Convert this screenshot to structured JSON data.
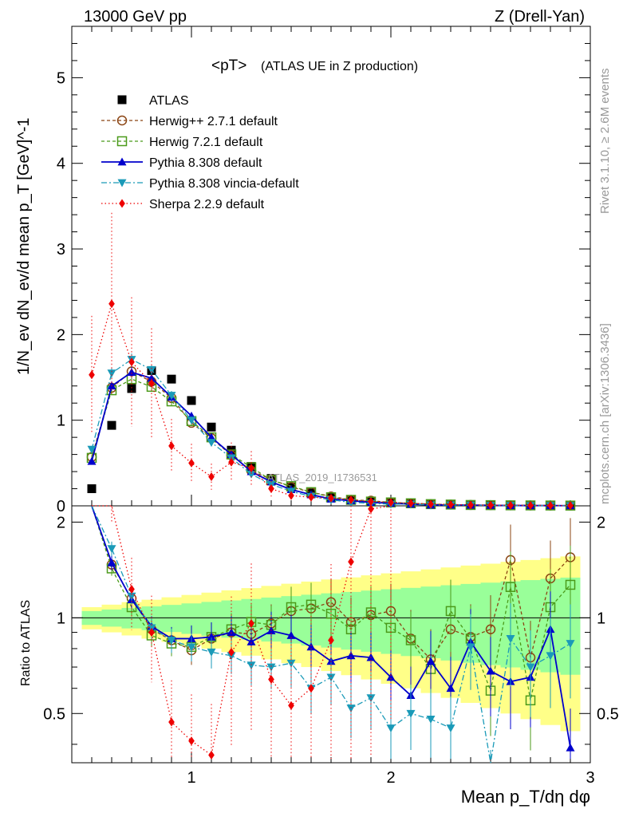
{
  "header": {
    "left": "13000 GeV pp",
    "right": "Z (Drell-Yan)"
  },
  "side_labels": {
    "rivet": "Rivet 3.1.10, ≥ 2.6M events",
    "mcplots": "mcplots.cern.ch [arXiv:1306.3436]"
  },
  "chart_data": {
    "type": "scatter",
    "title": "<pT>",
    "subtitle": "(ATLAS UE in Z production)",
    "watermark": "ATLAS_2019_I1736531",
    "xlabel": "Mean p_T/dη dφ",
    "ylabel": "1/N_ev dN_ev/d mean p_T [GeV]^-1",
    "ratio_ylabel": "Ratio to ATLAS",
    "xlim": [
      0.4,
      3.0
    ],
    "ylim": [
      0,
      5.6
    ],
    "ratio_ylim": [
      0.35,
      2.25
    ],
    "x_ticks": [
      "1",
      "2",
      "3"
    ],
    "y_ticks": [
      "0",
      "1",
      "2",
      "3",
      "4",
      "5"
    ],
    "ratio_ticks": [
      "0.5",
      "1",
      "2"
    ],
    "x": [
      0.5,
      0.6,
      0.7,
      0.8,
      0.9,
      1.0,
      1.1,
      1.2,
      1.3,
      1.4,
      1.5,
      1.6,
      1.7,
      1.8,
      1.9,
      2.0,
      2.1,
      2.2,
      2.3,
      2.4,
      2.5,
      2.6,
      2.7,
      2.8,
      2.9
    ],
    "series": [
      {
        "name": "ATLAS",
        "values": [
          0.2,
          0.94,
          1.37,
          1.58,
          1.48,
          1.23,
          0.92,
          0.65,
          0.46,
          0.32,
          0.22,
          0.15,
          0.1,
          0.07,
          0.05,
          0.04,
          0.03,
          0.02,
          0.015,
          0.01,
          0.008,
          0.006,
          0.005,
          0.004,
          0.003
        ],
        "ratio": [],
        "color": "#000000",
        "marker": "square-filled",
        "line": "none"
      },
      {
        "name": "Herwig++ 2.7.1 default",
        "values": [
          0.57,
          1.38,
          1.57,
          1.45,
          1.26,
          0.97,
          0.79,
          0.59,
          0.41,
          0.31,
          0.22,
          0.16,
          0.11,
          0.07,
          0.06,
          0.04,
          0.03,
          0.02,
          0.015,
          0.01,
          0.008,
          0.006,
          0.005,
          0.004,
          0.003
        ],
        "ratio": [
          2.85,
          1.47,
          1.15,
          0.92,
          0.85,
          0.79,
          0.86,
          0.9,
          0.89,
          0.96,
          1.05,
          1.07,
          1.12,
          0.97,
          1.02,
          1.05,
          0.86,
          0.74,
          0.92,
          0.87,
          0.92,
          1.52,
          0.75,
          1.33,
          1.55
        ],
        "color": "#8b4513",
        "marker": "circle-open",
        "line": "dashed"
      },
      {
        "name": "Herwig 7.2.1 default",
        "values": [
          0.56,
          1.35,
          1.48,
          1.39,
          1.22,
          0.99,
          0.8,
          0.6,
          0.45,
          0.3,
          0.23,
          0.16,
          0.1,
          0.07,
          0.05,
          0.04,
          0.03,
          0.02,
          0.015,
          0.01,
          0.008,
          0.006,
          0.005,
          0.004,
          0.003
        ],
        "ratio": [
          2.8,
          1.43,
          1.08,
          0.88,
          0.83,
          0.81,
          0.87,
          0.92,
          0.97,
          0.95,
          1.08,
          1.1,
          1.03,
          0.92,
          1.04,
          0.93,
          0.85,
          0.69,
          1.05,
          0.86,
          0.59,
          1.25,
          0.55,
          1.08,
          1.27
        ],
        "color": "#4b9a1a",
        "marker": "square-open",
        "line": "dashed"
      },
      {
        "name": "Pythia 8.308 default",
        "values": [
          0.52,
          1.4,
          1.56,
          1.49,
          1.27,
          1.05,
          0.8,
          0.6,
          0.4,
          0.28,
          0.19,
          0.13,
          0.08,
          0.06,
          0.04,
          0.03,
          0.02,
          0.01,
          0.01,
          0.008,
          0.006,
          0.004,
          0.003,
          0.003,
          0.002
        ],
        "ratio": [
          2.6,
          1.49,
          1.14,
          0.94,
          0.86,
          0.86,
          0.87,
          0.9,
          0.84,
          0.91,
          0.88,
          0.81,
          0.73,
          0.76,
          0.75,
          0.65,
          0.57,
          0.73,
          0.6,
          0.84,
          0.68,
          0.63,
          0.65,
          0.92,
          0.39
        ],
        "color": "#0000cc",
        "marker": "triangle-up",
        "line": "solid"
      },
      {
        "name": "Pythia 8.308 vincia-default",
        "values": [
          0.66,
          1.55,
          1.71,
          1.59,
          1.29,
          1.0,
          0.74,
          0.56,
          0.37,
          0.25,
          0.17,
          0.11,
          0.07,
          0.04,
          0.03,
          0.02,
          0.02,
          0.01,
          0.01,
          0.008,
          0.005,
          0.004,
          0.003,
          0.003,
          0.002
        ],
        "ratio": [
          3.3,
          1.65,
          1.17,
          0.93,
          0.85,
          0.81,
          0.78,
          0.76,
          0.71,
          0.7,
          0.72,
          0.6,
          0.65,
          0.52,
          0.56,
          0.45,
          0.5,
          0.48,
          0.45,
          0.81,
          0.3,
          0.86,
          0.7,
          0.76,
          0.83
        ],
        "color": "#1a9ab8",
        "marker": "triangle-down",
        "line": "dashdot"
      },
      {
        "name": "Sherpa 2.2.9 default",
        "values": [
          1.53,
          2.36,
          1.68,
          1.43,
          0.7,
          0.5,
          0.34,
          0.51,
          0.44,
          0.2,
          0.12,
          0.1,
          0.09,
          0.07,
          0.05,
          0.04,
          0.03,
          0.02,
          0.015,
          0.01,
          0.008,
          0.006,
          0.005,
          0.004,
          0.003
        ],
        "ratio": [
          7.6,
          2.5,
          1.23,
          0.9,
          0.47,
          0.41,
          0.37,
          0.78,
          0.96,
          0.64,
          0.53,
          0.6,
          0.85,
          1.5,
          2.2,
          4.0,
          null,
          null,
          null,
          null,
          null,
          null,
          null,
          null,
          null
        ],
        "color": "#ee0000",
        "marker": "diamond",
        "line": "dotted"
      }
    ],
    "legend": [
      "ATLAS",
      "Herwig++ 2.7.1 default",
      "Herwig 7.2.1 default",
      "Pythia 8.308 default",
      "Pythia 8.308 vincia-default",
      "Sherpa 2.2.9 default"
    ],
    "legend_placement": "top-left"
  }
}
